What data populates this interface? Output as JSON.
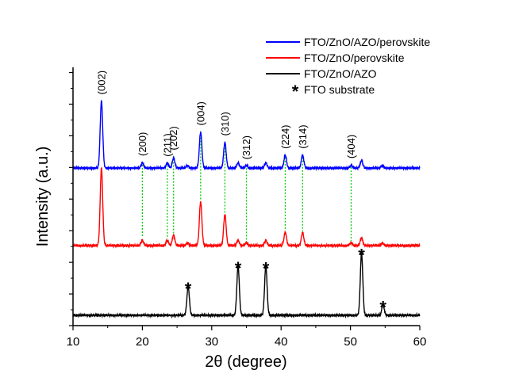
{
  "chart_data": {
    "type": "line",
    "title": "",
    "xlabel": "2θ (degree)",
    "ylabel": "Intensity (a.u.)",
    "xlim": [
      10,
      60
    ],
    "ylim": [
      0,
      1
    ],
    "xticks": [
      10,
      20,
      30,
      40,
      50,
      60
    ],
    "xtick_labels": [
      "10",
      "20",
      "30",
      "40",
      "50",
      "60"
    ],
    "grid": false,
    "legend_position": "top-right",
    "series": [
      {
        "name": "FTO/ZnO/AZO/perovskite",
        "color": "#0000ff",
        "baseline": 0.61,
        "peaks": [
          [
            14.1,
            0.26
          ],
          [
            20.0,
            0.02
          ],
          [
            23.6,
            0.02
          ],
          [
            24.5,
            0.04
          ],
          [
            26.5,
            0.01
          ],
          [
            28.4,
            0.14
          ],
          [
            31.9,
            0.1
          ],
          [
            33.8,
            0.02
          ],
          [
            35.0,
            0.01
          ],
          [
            37.8,
            0.02
          ],
          [
            40.6,
            0.05
          ],
          [
            43.1,
            0.05
          ],
          [
            50.1,
            0.01
          ],
          [
            51.6,
            0.03
          ],
          [
            54.6,
            0.01
          ]
        ]
      },
      {
        "name": "FTO/ZnO/perovskite",
        "color": "#ff0000",
        "baseline": 0.31,
        "peaks": [
          [
            14.1,
            0.3
          ],
          [
            20.0,
            0.02
          ],
          [
            23.6,
            0.02
          ],
          [
            24.5,
            0.04
          ],
          [
            26.5,
            0.01
          ],
          [
            28.4,
            0.17
          ],
          [
            31.9,
            0.12
          ],
          [
            33.8,
            0.02
          ],
          [
            35.0,
            0.01
          ],
          [
            37.8,
            0.02
          ],
          [
            40.6,
            0.05
          ],
          [
            43.1,
            0.05
          ],
          [
            50.1,
            0.01
          ],
          [
            51.6,
            0.03
          ],
          [
            54.6,
            0.01
          ]
        ]
      },
      {
        "name": "FTO/ZnO/AZO",
        "color": "#000000",
        "baseline": 0.04,
        "peaks": [
          [
            26.6,
            0.11
          ],
          [
            33.8,
            0.19
          ],
          [
            37.8,
            0.19
          ],
          [
            51.6,
            0.24
          ],
          [
            54.7,
            0.04
          ]
        ]
      }
    ],
    "legend_extra": [
      {
        "symbol": "*",
        "label": "FTO substrate"
      }
    ],
    "reflections": [
      {
        "label": "(002)",
        "x": 14.1
      },
      {
        "label": "(200)",
        "x": 20.0
      },
      {
        "label": "(211)",
        "x": 23.6
      },
      {
        "label": "(202)",
        "x": 24.5
      },
      {
        "label": "(004)",
        "x": 28.4
      },
      {
        "label": "(310)",
        "x": 31.9
      },
      {
        "label": "(312)",
        "x": 35.0
      },
      {
        "label": "(224)",
        "x": 40.6
      },
      {
        "label": "(314)",
        "x": 43.1
      },
      {
        "label": "(404)",
        "x": 50.1
      }
    ],
    "fto_markers": [
      {
        "label": "*",
        "x": 26.6
      },
      {
        "label": "*",
        "x": 33.8
      },
      {
        "label": "*",
        "x": 37.8
      },
      {
        "label": "*",
        "x": 51.6
      },
      {
        "label": "*",
        "x": 54.7
      }
    ],
    "colors": {
      "guide": "#00cc00",
      "axis": "#000000"
    }
  }
}
